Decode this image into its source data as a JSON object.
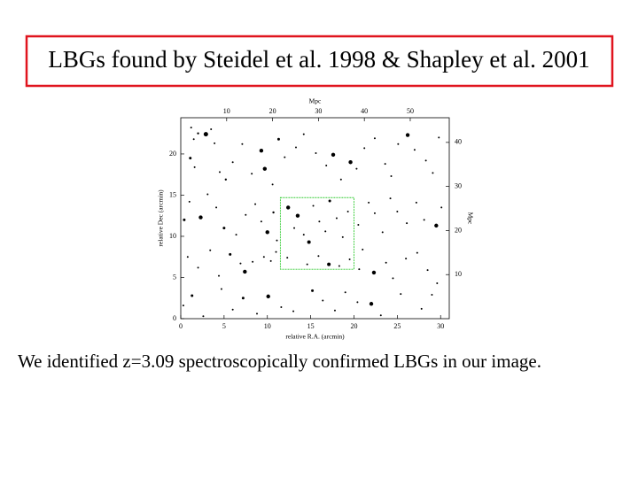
{
  "chart_data": {
    "type": "scatter",
    "title": "LBGs found by Steidel et al. 1998 & Shapley et al. 2001",
    "annotation": "We identified z=3.09 spectroscopically confirmed  LBGs in our image.",
    "xlabel": "relative R.A. (arcmin)",
    "ylabel": "relative Dec (arcmin)",
    "x2label": "Mpc",
    "y2label": "Mpc",
    "xlim": [
      0,
      31
    ],
    "ylim": [
      0,
      24.4
    ],
    "xticks": [
      0,
      5,
      10,
      15,
      20,
      25,
      30
    ],
    "yticks": [
      0,
      5,
      10,
      15,
      20
    ],
    "x2lim": [
      0,
      58.5
    ],
    "x2ticks": [
      10,
      20,
      30,
      40,
      50
    ],
    "y2lim": [
      0,
      45.6
    ],
    "y2ticks": [
      10,
      20,
      30,
      40
    ],
    "color": "#000000",
    "highlight": {
      "xlim": [
        11.5,
        20
      ],
      "ylim": [
        6,
        14.7
      ],
      "color": "#33cc33"
    },
    "x": [
      1.2,
      1.5,
      2.0,
      2.9,
      3.5,
      3.9,
      1.1,
      1.6,
      4.5,
      5.2,
      6.0,
      7.1,
      8.2,
      9.3,
      9.7,
      10.6,
      11.3,
      12.0,
      13.3,
      14.2,
      15.6,
      16.8,
      17.6,
      18.5,
      19.6,
      20.3,
      21.2,
      22.4,
      23.6,
      24.3,
      25.1,
      26.2,
      27.0,
      28.3,
      29.1,
      29.8,
      0.4,
      1.0,
      2.3,
      3.1,
      4.1,
      5.0,
      6.4,
      7.5,
      8.6,
      9.3,
      10.0,
      10.7,
      11.1,
      12.4,
      13.1,
      13.5,
      14.2,
      14.8,
      15.3,
      16.0,
      16.7,
      17.2,
      18.0,
      18.7,
      19.3,
      20.5,
      21.7,
      22.4,
      23.3,
      24.2,
      25.0,
      26.1,
      27.2,
      28.1,
      29.5,
      30.1,
      0.8,
      2.0,
      3.4,
      4.4,
      5.7,
      6.9,
      7.4,
      8.3,
      9.6,
      10.4,
      11.0,
      12.3,
      14.6,
      15.9,
      17.1,
      18.3,
      19.5,
      20.6,
      21.0,
      22.3,
      23.7,
      24.5,
      26.0,
      27.3,
      28.5,
      29.6,
      0.3,
      1.3,
      2.6,
      4.7,
      6.0,
      7.2,
      8.8,
      10.1,
      11.6,
      13.0,
      15.2,
      16.4,
      17.8,
      19.0,
      20.4,
      22.0,
      23.1,
      25.4,
      27.8,
      29.0
    ],
    "values": [
      23.2,
      21.8,
      22.5,
      22.4,
      23.0,
      21.3,
      19.5,
      18.4,
      17.8,
      16.9,
      19.0,
      21.2,
      17.6,
      20.4,
      18.2,
      16.3,
      21.8,
      19.6,
      20.8,
      22.4,
      20.1,
      18.6,
      19.9,
      16.9,
      19.0,
      18.2,
      20.7,
      21.9,
      18.8,
      17.3,
      21.2,
      22.3,
      20.5,
      19.2,
      17.7,
      22.0,
      12.0,
      14.2,
      12.3,
      15.1,
      13.5,
      11.0,
      10.2,
      12.6,
      13.9,
      11.8,
      10.5,
      12.9,
      9.5,
      13.5,
      11.0,
      12.5,
      10.2,
      9.3,
      13.7,
      11.8,
      10.6,
      14.3,
      12.2,
      9.9,
      13.0,
      11.4,
      14.1,
      12.8,
      10.5,
      14.6,
      13.0,
      11.6,
      14.1,
      12.0,
      11.3,
      13.5,
      7.5,
      6.2,
      8.3,
      5.2,
      7.8,
      6.7,
      5.7,
      6.9,
      7.5,
      7.0,
      8.1,
      7.4,
      6.6,
      7.6,
      6.6,
      6.4,
      7.2,
      6.0,
      8.4,
      5.6,
      6.8,
      4.9,
      7.3,
      8.0,
      5.9,
      4.3,
      1.6,
      2.8,
      0.3,
      3.6,
      1.1,
      2.5,
      0.6,
      2.7,
      1.4,
      0.9,
      3.4,
      2.2,
      1.0,
      3.2,
      2.0,
      1.8,
      0.4,
      3.0,
      1.2,
      2.9
    ],
    "sizes": [
      1,
      1,
      1.2,
      2.5,
      1,
      1,
      1.5,
      1,
      1,
      1.2,
      1,
      1,
      1,
      2.2,
      2.2,
      1,
      1.5,
      1,
      1,
      1,
      1,
      1,
      2.2,
      1,
      2.2,
      1,
      1,
      1,
      1,
      1,
      1,
      2.2,
      1,
      1,
      1,
      1,
      1.5,
      1,
      2.2,
      1,
      1,
      1.5,
      1,
      1,
      1,
      1,
      2.2,
      1.2,
      1,
      2.2,
      1,
      2.2,
      1,
      2,
      1,
      1,
      1,
      1.5,
      1,
      1,
      1,
      1,
      1,
      1,
      1,
      1,
      1,
      1,
      1,
      1,
      2.2,
      1,
      1,
      1,
      1,
      1,
      1.5,
      1,
      2.2,
      1,
      1,
      1,
      1,
      1,
      1,
      1,
      2,
      1,
      1,
      1,
      1,
      2.2,
      1,
      1,
      1,
      1,
      1,
      1,
      1,
      1.5,
      1,
      1,
      1,
      1.5,
      1,
      2.2,
      1,
      1,
      1.5,
      1,
      1,
      1,
      1,
      2.2,
      1,
      1,
      1,
      1
    ]
  }
}
